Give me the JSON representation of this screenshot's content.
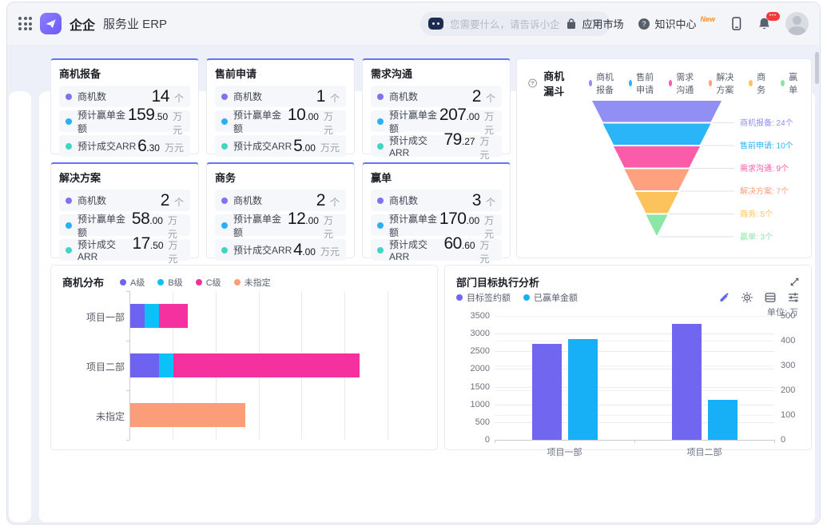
{
  "topbar": {
    "brand": "企企",
    "product": "服务业 ERP",
    "search_placeholder": "您需要什么，请告诉小企",
    "nav": [
      {
        "label": "应用市场"
      },
      {
        "label": "知识中心",
        "badge": "New"
      }
    ],
    "bell_badge": "•••"
  },
  "stat_metric_colors": [
    "#7e74f1",
    "#2ab0f8",
    "#41d6c3"
  ],
  "stat_cards": [
    {
      "title": "商机报备",
      "rows": [
        {
          "label": "商机数",
          "int": "14",
          "dec": "",
          "unit": "个"
        },
        {
          "label": "预计赢单金额",
          "int": "159",
          "dec": ".50",
          "unit": "万元"
        },
        {
          "label": "预计成交ARR",
          "int": "6",
          "dec": ".30",
          "unit": "万元"
        }
      ]
    },
    {
      "title": "售前申请",
      "rows": [
        {
          "label": "商机数",
          "int": "1",
          "dec": "",
          "unit": "个"
        },
        {
          "label": "预计赢单金额",
          "int": "10",
          "dec": ".00",
          "unit": "万元"
        },
        {
          "label": "预计成交ARR",
          "int": "5",
          "dec": ".00",
          "unit": "万元"
        }
      ]
    },
    {
      "title": "需求沟通",
      "rows": [
        {
          "label": "商机数",
          "int": "2",
          "dec": "",
          "unit": "个"
        },
        {
          "label": "预计赢单金额",
          "int": "207",
          "dec": ".00",
          "unit": "万元"
        },
        {
          "label": "预计成交ARR",
          "int": "79",
          "dec": ".27",
          "unit": "万元"
        }
      ]
    },
    {
      "title": "解决方案",
      "rows": [
        {
          "label": "商机数",
          "int": "2",
          "dec": "",
          "unit": "个"
        },
        {
          "label": "预计赢单金额",
          "int": "58",
          "dec": ".00",
          "unit": "万元"
        },
        {
          "label": "预计成交ARR",
          "int": "17",
          "dec": ".50",
          "unit": "万元"
        }
      ]
    },
    {
      "title": "商务",
      "rows": [
        {
          "label": "商机数",
          "int": "2",
          "dec": "",
          "unit": "个"
        },
        {
          "label": "预计赢单金额",
          "int": "12",
          "dec": ".00",
          "unit": "万元"
        },
        {
          "label": "预计成交ARR",
          "int": "4",
          "dec": ".00",
          "unit": "万元"
        }
      ]
    },
    {
      "title": "赢单",
      "rows": [
        {
          "label": "商机数",
          "int": "3",
          "dec": "",
          "unit": "个"
        },
        {
          "label": "预计赢单金额",
          "int": "170",
          "dec": ".00",
          "unit": "万元"
        },
        {
          "label": "预计成交ARR",
          "int": "60",
          "dec": ".60",
          "unit": "万元"
        }
      ]
    }
  ],
  "chart_data": [
    {
      "type": "funnel",
      "title": "商机漏斗",
      "label_suffix": "个",
      "stages": [
        {
          "name": "商机报备",
          "value": 24,
          "color": "#918ef4"
        },
        {
          "name": "售前申请",
          "value": 10,
          "color": "#2ab5f8"
        },
        {
          "name": "需求沟通",
          "value": 9,
          "color": "#fa5ca9"
        },
        {
          "name": "解决方案",
          "value": 7,
          "color": "#ffa07e"
        },
        {
          "name": "商务",
          "value": 5,
          "color": "#fcc35c"
        },
        {
          "name": "赢单",
          "value": 3,
          "color": "#8ce6a5"
        }
      ]
    },
    {
      "type": "stacked-bar-horizontal",
      "title": "商机分布",
      "categories": [
        "项目一部",
        "项目二部",
        "未指定"
      ],
      "series": [
        {
          "name": "A级",
          "color": "#6e63f1",
          "values": [
            1,
            2,
            0
          ]
        },
        {
          "name": "B级",
          "color": "#0bc1f8",
          "values": [
            1,
            1,
            0
          ]
        },
        {
          "name": "C级",
          "color": "#f5309f",
          "values": [
            2,
            13,
            0
          ]
        },
        {
          "name": "未指定",
          "color": "#fb9d78",
          "values": [
            0,
            0,
            8
          ]
        }
      ],
      "xmax": 18,
      "grid_interval": 3,
      "grid": true
    },
    {
      "type": "bar",
      "title": "部门目标执行分析",
      "unit_label": "单位: 万",
      "categories": [
        "项目一部",
        "项目二部"
      ],
      "series": [
        {
          "name": "目标签约额",
          "axis": "left",
          "color": "#7066f0",
          "values": [
            2700,
            3270
          ]
        },
        {
          "name": "已赢单金额",
          "axis": "right",
          "color": "#17b0f6",
          "values": [
            405,
            160
          ]
        }
      ],
      "left_axis": {
        "min": 0,
        "max": 3500,
        "step": 500
      },
      "right_axis": {
        "min": 0,
        "max": 500,
        "step": 100
      },
      "grid": true
    }
  ]
}
